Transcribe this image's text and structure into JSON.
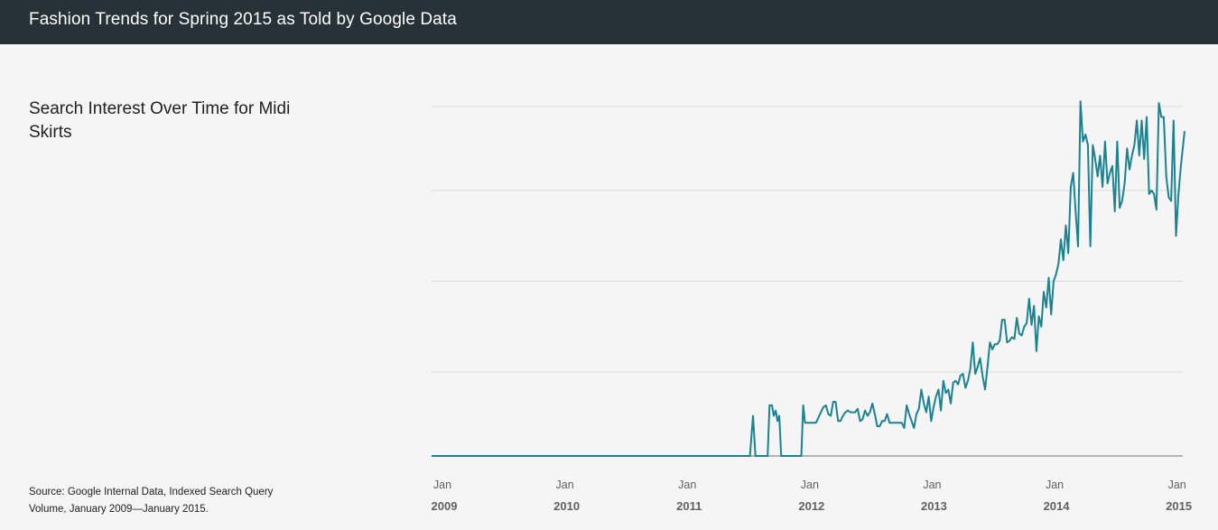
{
  "header": {
    "title": "Fashion Trends for Spring 2015 as Told by Google Data"
  },
  "colors": {
    "header_bg": "#263238",
    "line": "#1a8291",
    "grid": "#dadada",
    "baseline": "#9e9e9e"
  },
  "chart_data": {
    "type": "line",
    "title": "Search Interest Over Time for Midi Skirts",
    "source": "Source: Google Internal Data, Indexed Search Query Volume, January 2009—January 2015.",
    "xlabel": "",
    "ylabel": "",
    "ylim": [
      0,
      100
    ],
    "y_gridlines": [
      0,
      24,
      50,
      76,
      100
    ],
    "xlim": [
      2009.0,
      2015.15
    ],
    "grid": true,
    "legend": "none",
    "x_ticks": [
      {
        "value": 2009,
        "month": "Jan",
        "year": "2009"
      },
      {
        "value": 2010,
        "month": "Jan",
        "year": "2010"
      },
      {
        "value": 2011,
        "month": "Jan",
        "year": "2011"
      },
      {
        "value": 2012,
        "month": "Jan",
        "year": "2012"
      },
      {
        "value": 2013,
        "month": "Jan",
        "year": "2013"
      },
      {
        "value": 2014,
        "month": "Jan",
        "year": "2014"
      },
      {
        "value": 2015,
        "month": "Jan",
        "year": "2015"
      }
    ],
    "series": [
      {
        "values": [
          [
            2009.0,
            0
          ],
          [
            2011.6,
            0
          ],
          [
            2011.625,
            11.5
          ],
          [
            2011.645,
            0
          ],
          [
            2011.745,
            0
          ],
          [
            2011.76,
            14.5
          ],
          [
            2011.78,
            14.5
          ],
          [
            2011.795,
            11.5
          ],
          [
            2011.81,
            13
          ],
          [
            2011.825,
            10
          ],
          [
            2011.84,
            11.5
          ],
          [
            2011.855,
            0
          ],
          [
            2012.02,
            0
          ],
          [
            2012.035,
            14.5
          ],
          [
            2012.05,
            9.5
          ],
          [
            2012.08,
            9.5
          ],
          [
            2012.11,
            9.5
          ],
          [
            2012.14,
            9.5
          ],
          [
            2012.16,
            11
          ],
          [
            2012.18,
            12.5
          ],
          [
            2012.2,
            14
          ],
          [
            2012.22,
            14.5
          ],
          [
            2012.24,
            12
          ],
          [
            2012.26,
            11.5
          ],
          [
            2012.28,
            15.5
          ],
          [
            2012.3,
            15.5
          ],
          [
            2012.32,
            10
          ],
          [
            2012.34,
            10
          ],
          [
            2012.36,
            11.5
          ],
          [
            2012.38,
            12.5
          ],
          [
            2012.4,
            13
          ],
          [
            2012.42,
            12.5
          ],
          [
            2012.44,
            12.5
          ],
          [
            2012.46,
            12.5
          ],
          [
            2012.48,
            13.5
          ],
          [
            2012.5,
            10
          ],
          [
            2012.52,
            10.5
          ],
          [
            2012.54,
            13
          ],
          [
            2012.56,
            11.5
          ],
          [
            2012.58,
            12.5
          ],
          [
            2012.6,
            15
          ],
          [
            2012.62,
            12
          ],
          [
            2012.64,
            8.5
          ],
          [
            2012.66,
            8.5
          ],
          [
            2012.68,
            10
          ],
          [
            2012.7,
            10
          ],
          [
            2012.72,
            12
          ],
          [
            2012.74,
            9.5
          ],
          [
            2012.76,
            9.5
          ],
          [
            2012.78,
            9.5
          ],
          [
            2012.8,
            9.5
          ],
          [
            2012.82,
            9.5
          ],
          [
            2012.84,
            9.5
          ],
          [
            2012.86,
            8
          ],
          [
            2012.88,
            14.5
          ],
          [
            2012.9,
            12
          ],
          [
            2012.92,
            10
          ],
          [
            2012.94,
            8
          ],
          [
            2012.96,
            12
          ],
          [
            2012.98,
            13.5
          ],
          [
            2013.0,
            19
          ],
          [
            2013.02,
            15
          ],
          [
            2013.04,
            12.5
          ],
          [
            2013.06,
            17
          ],
          [
            2013.08,
            10
          ],
          [
            2013.1,
            14
          ],
          [
            2013.12,
            17
          ],
          [
            2013.14,
            19
          ],
          [
            2013.16,
            13
          ],
          [
            2013.18,
            21.5
          ],
          [
            2013.2,
            18
          ],
          [
            2013.22,
            19
          ],
          [
            2013.24,
            15
          ],
          [
            2013.26,
            21
          ],
          [
            2013.28,
            21.5
          ],
          [
            2013.3,
            20.5
          ],
          [
            2013.32,
            23
          ],
          [
            2013.34,
            23.5
          ],
          [
            2013.36,
            19.5
          ],
          [
            2013.38,
            21.5
          ],
          [
            2013.4,
            25
          ],
          [
            2013.42,
            32.5
          ],
          [
            2013.44,
            23.5
          ],
          [
            2013.46,
            25.5
          ],
          [
            2013.48,
            28
          ],
          [
            2013.5,
            23
          ],
          [
            2013.52,
            19
          ],
          [
            2013.54,
            25.5
          ],
          [
            2013.56,
            32.5
          ],
          [
            2013.58,
            30.5
          ],
          [
            2013.6,
            32
          ],
          [
            2013.62,
            32
          ],
          [
            2013.64,
            33
          ],
          [
            2013.66,
            39
          ],
          [
            2013.68,
            39
          ],
          [
            2013.7,
            32.5
          ],
          [
            2013.72,
            33
          ],
          [
            2013.74,
            34
          ],
          [
            2013.76,
            33.5
          ],
          [
            2013.78,
            39.5
          ],
          [
            2013.8,
            35
          ],
          [
            2013.82,
            34.5
          ],
          [
            2013.84,
            37
          ],
          [
            2013.86,
            38
          ],
          [
            2013.88,
            45
          ],
          [
            2013.9,
            37.5
          ],
          [
            2013.92,
            43
          ],
          [
            2013.94,
            30
          ],
          [
            2013.96,
            40
          ],
          [
            2013.98,
            37
          ],
          [
            2014.0,
            47
          ],
          [
            2014.02,
            42.5
          ],
          [
            2014.04,
            51
          ],
          [
            2014.06,
            40.5
          ],
          [
            2014.08,
            50
          ],
          [
            2014.1,
            52
          ],
          [
            2014.12,
            55
          ],
          [
            2014.14,
            62
          ],
          [
            2014.16,
            56
          ],
          [
            2014.18,
            66
          ],
          [
            2014.2,
            58
          ],
          [
            2014.22,
            77
          ],
          [
            2014.24,
            81
          ],
          [
            2014.26,
            70
          ],
          [
            2014.28,
            60
          ],
          [
            2014.3,
            101.5
          ],
          [
            2014.32,
            90
          ],
          [
            2014.34,
            92
          ],
          [
            2014.36,
            89
          ],
          [
            2014.38,
            60
          ],
          [
            2014.4,
            89
          ],
          [
            2014.42,
            85
          ],
          [
            2014.44,
            80
          ],
          [
            2014.46,
            86
          ],
          [
            2014.48,
            77
          ],
          [
            2014.5,
            90
          ],
          [
            2014.52,
            78
          ],
          [
            2014.54,
            81
          ],
          [
            2014.56,
            83
          ],
          [
            2014.58,
            70
          ],
          [
            2014.6,
            90
          ],
          [
            2014.62,
            71
          ],
          [
            2014.64,
            73
          ],
          [
            2014.66,
            78
          ],
          [
            2014.68,
            88
          ],
          [
            2014.7,
            82
          ],
          [
            2014.72,
            86
          ],
          [
            2014.74,
            89
          ],
          [
            2014.76,
            96
          ],
          [
            2014.78,
            86
          ],
          [
            2014.8,
            96
          ],
          [
            2014.82,
            85
          ],
          [
            2014.84,
            97
          ],
          [
            2014.86,
            75
          ],
          [
            2014.88,
            76
          ],
          [
            2014.9,
            75
          ],
          [
            2014.92,
            70.5
          ],
          [
            2014.94,
            101
          ],
          [
            2014.96,
            97
          ],
          [
            2014.98,
            97
          ],
          [
            2015.0,
            80
          ],
          [
            2015.02,
            74
          ],
          [
            2015.04,
            73
          ],
          [
            2015.06,
            96
          ],
          [
            2015.08,
            63
          ],
          [
            2015.1,
            75
          ],
          [
            2015.12,
            83
          ],
          [
            2015.15,
            93
          ]
        ]
      }
    ]
  }
}
